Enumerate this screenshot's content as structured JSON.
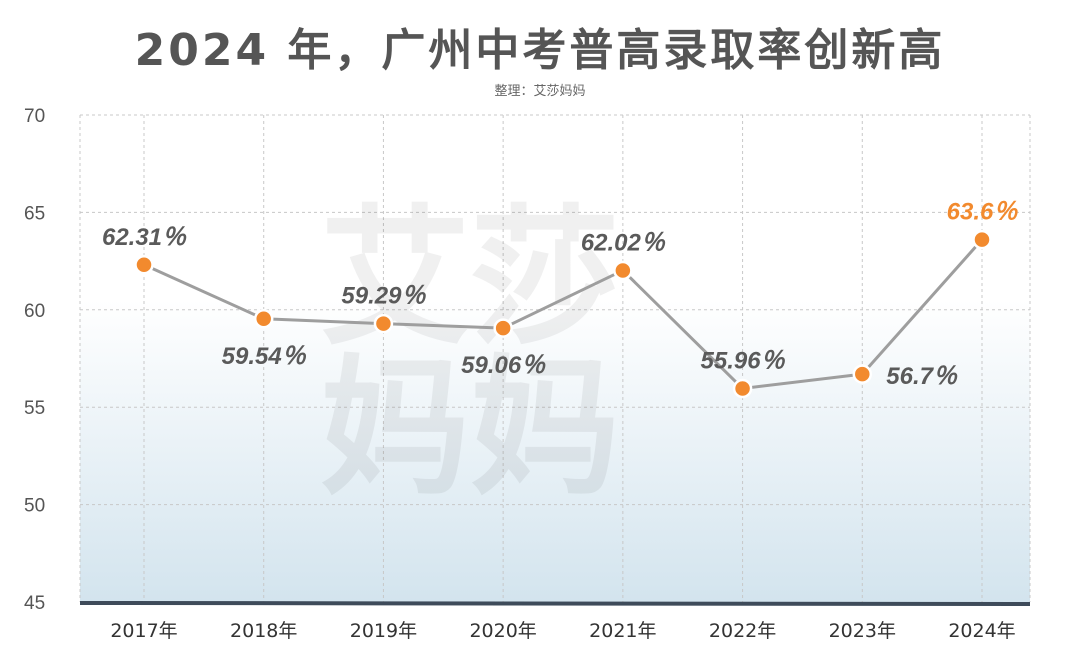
{
  "title": "2024 年，广州中考普高录取率创新高",
  "subtitle": "整理：艾莎妈妈",
  "watermark": [
    "艾莎",
    "妈妈"
  ],
  "colors": {
    "line": "#9e9e9e",
    "point": "#f28a2e",
    "highlight_label": "#f28a2e",
    "label": "#5a5a5a",
    "baseline": "#3e4b5a",
    "area_top": "#ffffff",
    "area_bottom": "#d3e4ee"
  },
  "chart_data": {
    "type": "line",
    "title": "2024 年，广州中考普高录取率创新高",
    "subtitle": "整理：艾莎妈妈",
    "categories": [
      "2017年",
      "2018年",
      "2019年",
      "2020年",
      "2021年",
      "2022年",
      "2023年",
      "2024年"
    ],
    "series": [
      {
        "values": [
          62.31,
          59.54,
          59.29,
          59.06,
          62.02,
          55.96,
          56.7,
          63.6
        ],
        "labels": [
          "62.31％",
          "59.54％",
          "59.29％",
          "59.06％",
          "62.02％",
          "55.96％",
          "56.7％",
          "63.6％"
        ],
        "label_position": [
          "above",
          "below",
          "above",
          "below",
          "above",
          "above",
          "right",
          "above"
        ],
        "highlight": [
          false,
          false,
          false,
          false,
          false,
          false,
          false,
          true
        ]
      }
    ],
    "ylim": [
      45,
      70
    ],
    "yticks": [
      45,
      50,
      55,
      60,
      65,
      70
    ],
    "xlabel": "",
    "ylabel": "",
    "grid": true
  }
}
